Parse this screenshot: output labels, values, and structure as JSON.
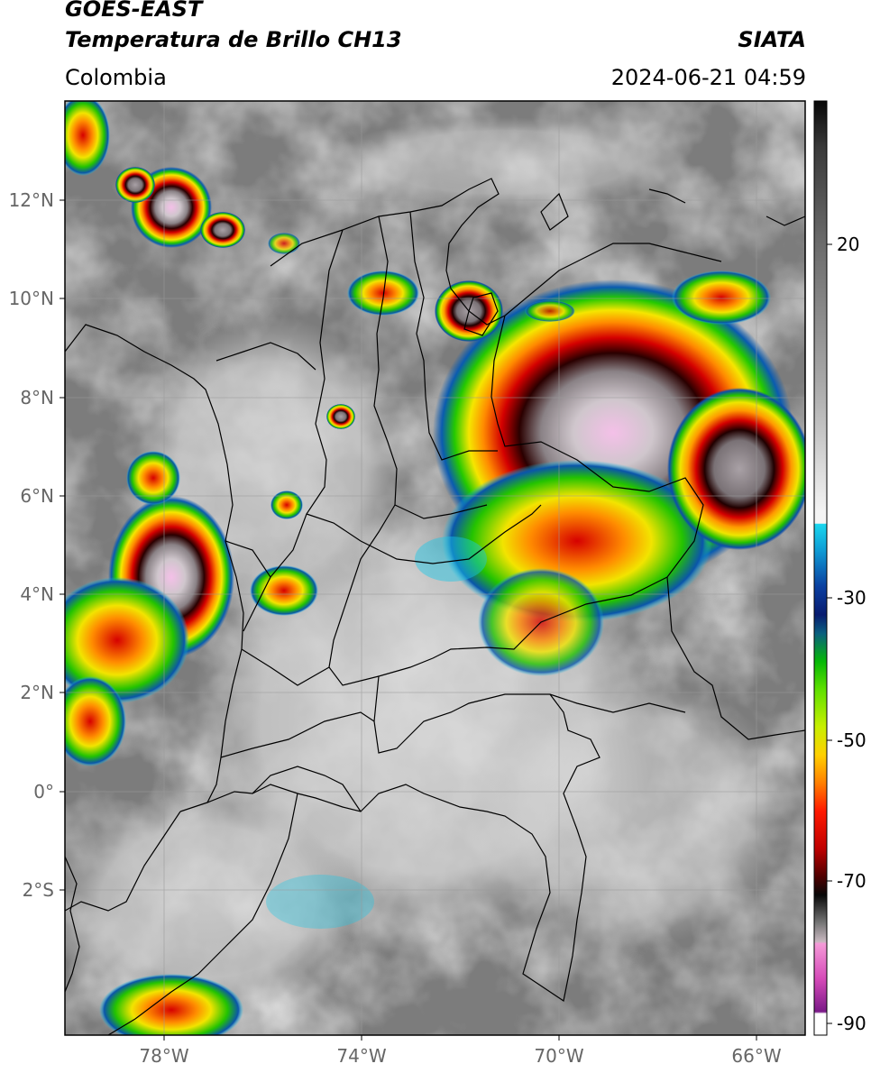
{
  "header": {
    "satellite": "GOES-EAST",
    "product": "Temperatura de Brillo CH13",
    "region": "Colombia",
    "agency": "SIATA",
    "datetime": "2024-06-21 04:59"
  },
  "map": {
    "lat_labels": [
      "12°N",
      "10°N",
      "8°N",
      "6°N",
      "4°N",
      "2°N",
      "0°",
      "2°S"
    ],
    "lon_labels": [
      "78°W",
      "74°W",
      "70°W",
      "66°W"
    ]
  },
  "colorbar": {
    "tick_labels": [
      "20",
      "-30",
      "-50",
      "-70",
      "-90"
    ]
  }
}
